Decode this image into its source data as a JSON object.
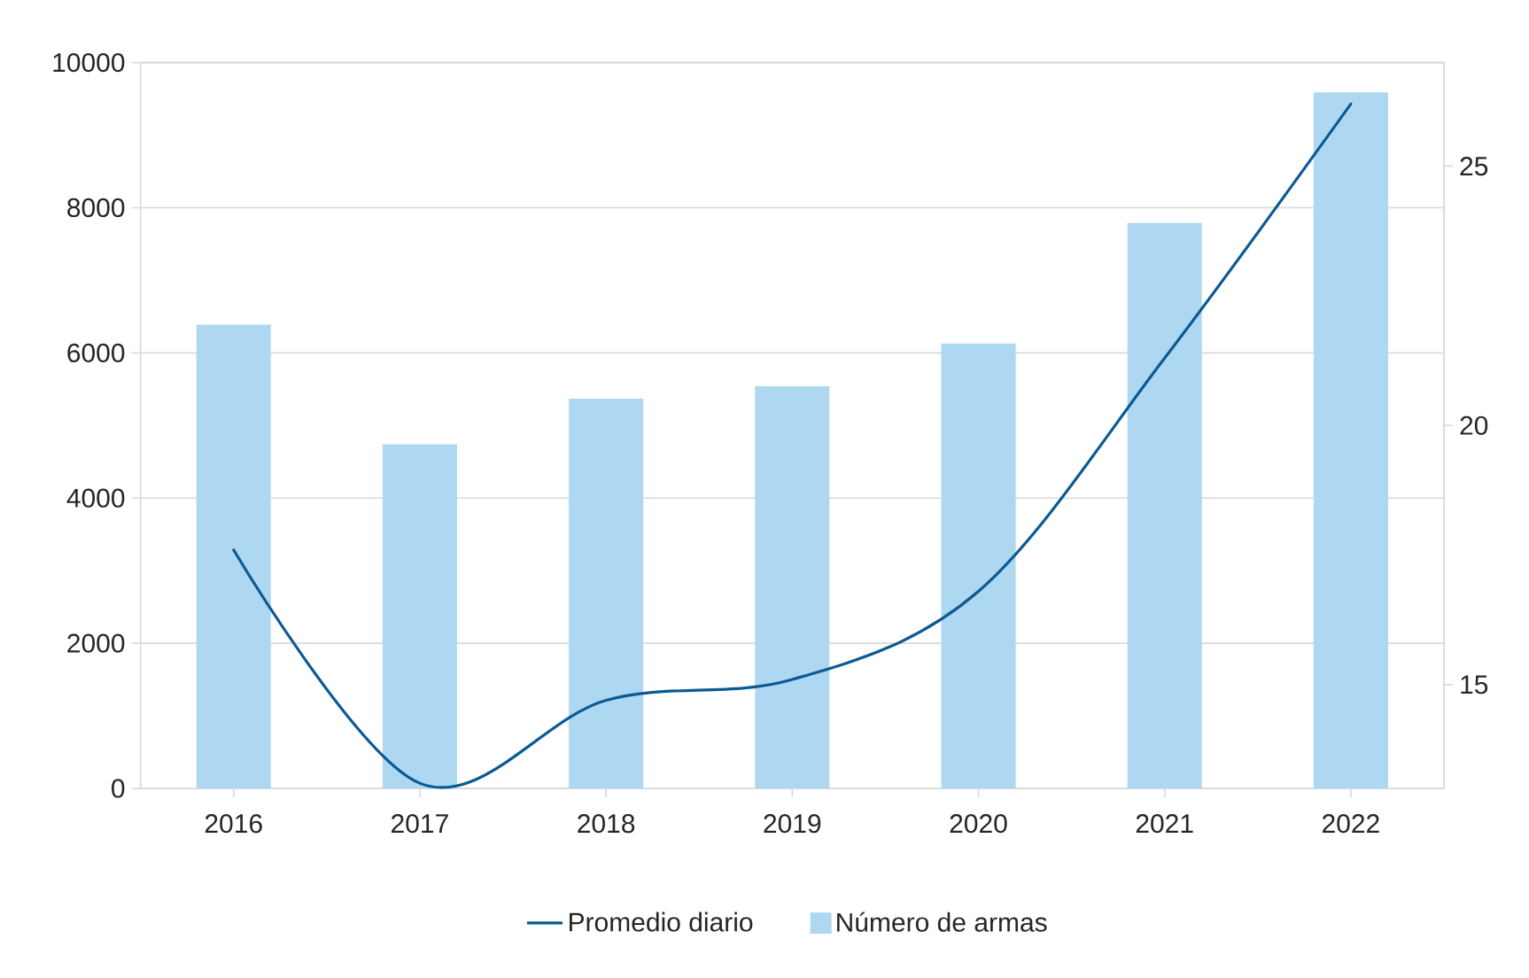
{
  "chart_data": {
    "type": "bar",
    "categories": [
      "2016",
      "2017",
      "2018",
      "2019",
      "2020",
      "2021",
      "2022"
    ],
    "series": [
      {
        "name": "Promedio diario",
        "type": "line",
        "axis": "y2",
        "color": "#0b5a94",
        "values": [
          17.6,
          13.1,
          14.7,
          15.1,
          16.8,
          21.3,
          26.2
        ]
      },
      {
        "name": "Número de armas",
        "color": "#aed8f2",
        "values": [
          6390,
          4740,
          5370,
          5540,
          6130,
          7790,
          9590
        ]
      }
    ],
    "ylim": [
      0,
      10000
    ],
    "yticks": [
      0,
      2000,
      4000,
      6000,
      8000,
      10000
    ],
    "y2lim": [
      13,
      27
    ],
    "y2ticks": [
      15,
      20,
      25
    ],
    "grid": "y",
    "legend": "bottom",
    "marker": "none",
    "line_style": "solid"
  }
}
